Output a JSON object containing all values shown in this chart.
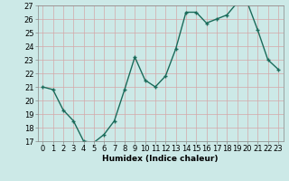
{
  "x": [
    0,
    1,
    2,
    3,
    4,
    5,
    6,
    7,
    8,
    9,
    10,
    11,
    12,
    13,
    14,
    15,
    16,
    17,
    18,
    19,
    20,
    21,
    22,
    23
  ],
  "y": [
    21.0,
    20.8,
    19.3,
    18.5,
    17.0,
    16.9,
    17.5,
    18.5,
    20.8,
    23.2,
    21.5,
    21.0,
    21.8,
    23.8,
    26.5,
    26.5,
    25.7,
    26.0,
    26.3,
    27.2,
    27.2,
    25.2,
    23.0,
    22.3
  ],
  "line_color": "#1a6b5a",
  "marker": "+",
  "marker_size": 3,
  "marker_linewidth": 1.0,
  "bg_color": "#cce9e7",
  "grid_color": "#b0d8d5",
  "ylim": [
    17,
    27
  ],
  "xlim": [
    -0.5,
    23.5
  ],
  "yticks": [
    17,
    18,
    19,
    20,
    21,
    22,
    23,
    24,
    25,
    26,
    27
  ],
  "xticks": [
    0,
    1,
    2,
    3,
    4,
    5,
    6,
    7,
    8,
    9,
    10,
    11,
    12,
    13,
    14,
    15,
    16,
    17,
    18,
    19,
    20,
    21,
    22,
    23
  ],
  "xlabel": "Humidex (Indice chaleur)",
  "xlabel_fontsize": 6.5,
  "tick_fontsize": 6,
  "linewidth": 1.0,
  "spine_color": "#888888"
}
